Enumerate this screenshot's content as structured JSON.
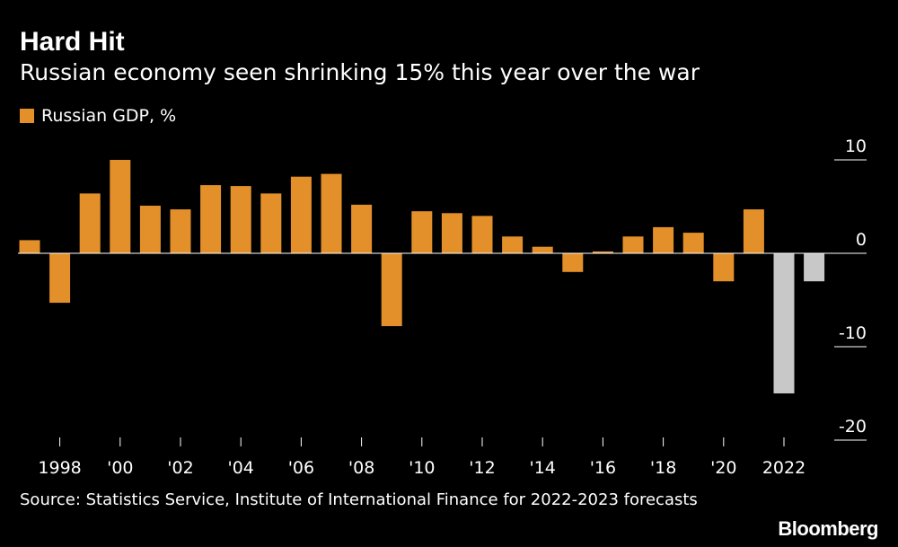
{
  "title": "Hard Hit",
  "subtitle": "Russian economy seen shrinking 15% this year over the war",
  "legend_label": "Russian GDP, %",
  "source": "Source: Statistics Service, Institute of International Finance for 2022-2023 forecasts",
  "brand": "Bloomberg",
  "colors": {
    "actual": "#e3902b",
    "forecast": "#c8c8c8",
    "background": "#000000",
    "text": "#ffffff"
  },
  "chart_data": {
    "type": "bar",
    "categories": [
      1997,
      1998,
      1999,
      2000,
      2001,
      2002,
      2003,
      2004,
      2005,
      2006,
      2007,
      2008,
      2009,
      2010,
      2011,
      2012,
      2013,
      2014,
      2015,
      2016,
      2017,
      2018,
      2019,
      2020,
      2021,
      2022,
      2023
    ],
    "values": [
      1.4,
      -5.3,
      6.4,
      10.0,
      5.1,
      4.7,
      7.3,
      7.2,
      6.4,
      8.2,
      8.5,
      5.2,
      -7.8,
      4.5,
      4.3,
      4.0,
      1.8,
      0.7,
      -2.0,
      0.2,
      1.8,
      2.8,
      2.2,
      -3.0,
      4.7,
      -15.0,
      -3.0
    ],
    "forecast_from": 2022,
    "x_tick_labels": [
      {
        "year": 1998,
        "label": "1998"
      },
      {
        "year": 2000,
        "label": "'00"
      },
      {
        "year": 2002,
        "label": "'02"
      },
      {
        "year": 2004,
        "label": "'04"
      },
      {
        "year": 2006,
        "label": "'06"
      },
      {
        "year": 2008,
        "label": "'08"
      },
      {
        "year": 2010,
        "label": "'10"
      },
      {
        "year": 2012,
        "label": "'12"
      },
      {
        "year": 2014,
        "label": "'14"
      },
      {
        "year": 2016,
        "label": "'16"
      },
      {
        "year": 2018,
        "label": "'18"
      },
      {
        "year": 2020,
        "label": "'20"
      },
      {
        "year": 2022,
        "label": "2022"
      }
    ],
    "y_ticks": [
      10,
      0,
      -10,
      -20
    ],
    "y_tick_labels": [
      "10",
      "0",
      "-10",
      "-20"
    ],
    "ylim": [
      -20,
      10
    ],
    "axis_position": "right",
    "series": [
      {
        "name": "Russian GDP, %"
      }
    ]
  }
}
